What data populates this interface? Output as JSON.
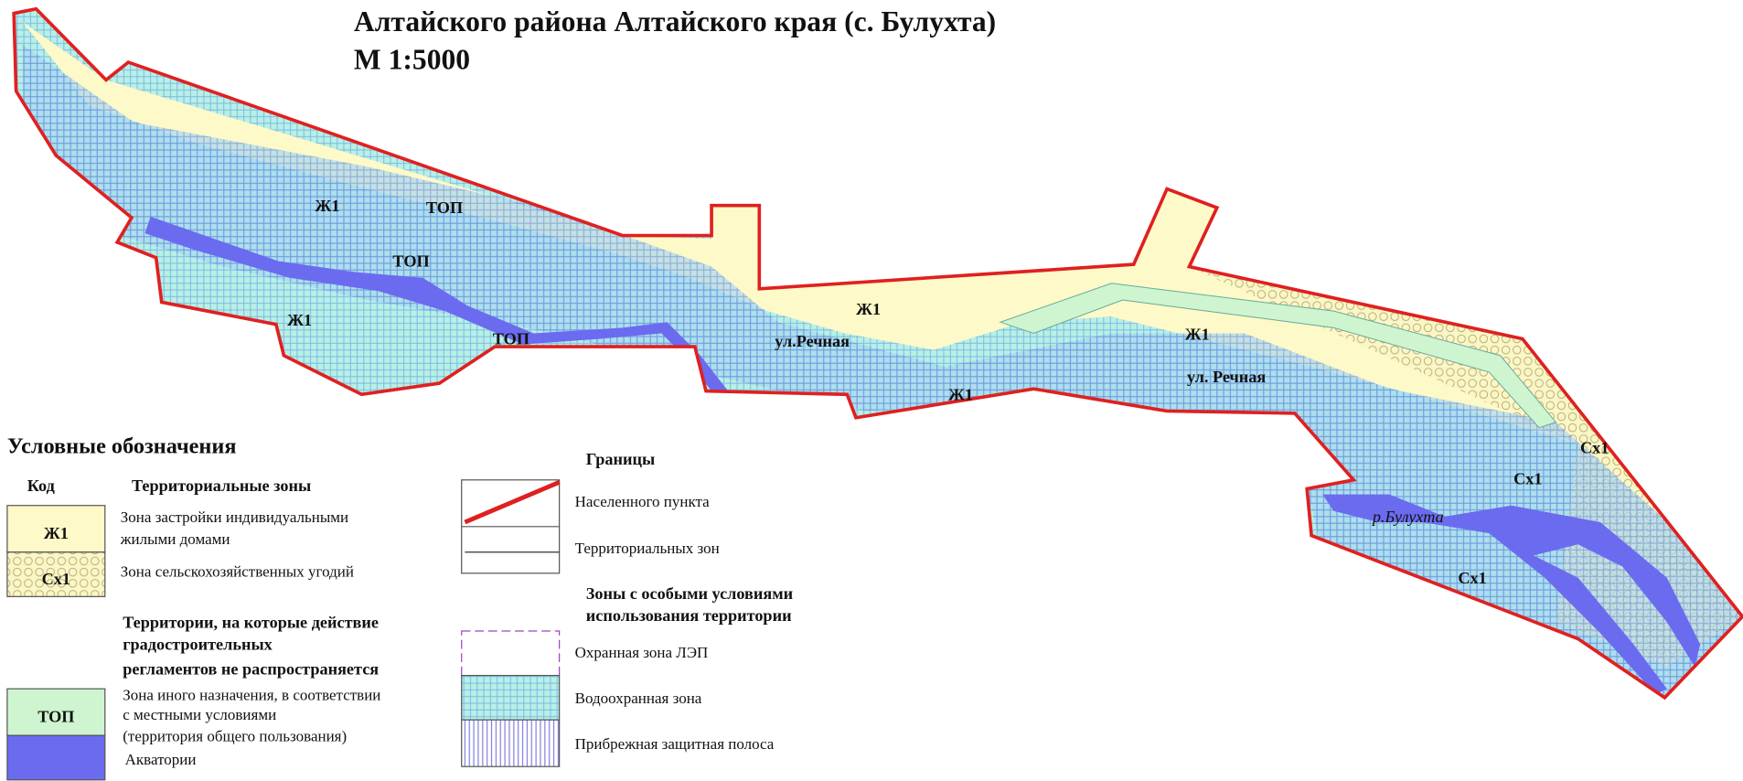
{
  "title": {
    "line1": "Алтайского района Алтайского края (с. Булухта)",
    "scale": "М 1:5000"
  },
  "map_labels": [
    "Ж1",
    "ТОП",
    "ТОП",
    "Ж1",
    "ТОП",
    "Ж1",
    "ул.Речная",
    "Ж1",
    "Ж1",
    "ул. Речная",
    "Сх1",
    "Сх1",
    "р.Булухта",
    "Сх1"
  ],
  "legend": {
    "title": "Условные обозначения",
    "code_header": "Код",
    "zones_header": "Территориальные зоны",
    "zones": [
      {
        "code": "Ж1",
        "text": [
          "Зона застройки индивидуальными",
          "жилыми домами"
        ]
      },
      {
        "code": "Сх1",
        "text": [
          "Зона сельскохозяйственных угодий"
        ]
      }
    ],
    "excluded_header": [
      "Территории, на которые действие",
      "градостроительных",
      "регламентов не распространяется"
    ],
    "top": {
      "code": "ТОП",
      "text": [
        "Зона иного назначения, в соответствии",
        "с местными условиями",
        "(территория общего пользования)"
      ]
    },
    "water": "Акватории",
    "boundaries_header": "Границы",
    "boundaries": [
      "Населенного пункта",
      "Территориальных зон"
    ],
    "special_header": [
      "Зоны с особыми условиями",
      "использования территории"
    ],
    "special": [
      "Охранная зона ЛЭП",
      "Водоохранная зона",
      "Прибрежная защитная полоса"
    ]
  }
}
